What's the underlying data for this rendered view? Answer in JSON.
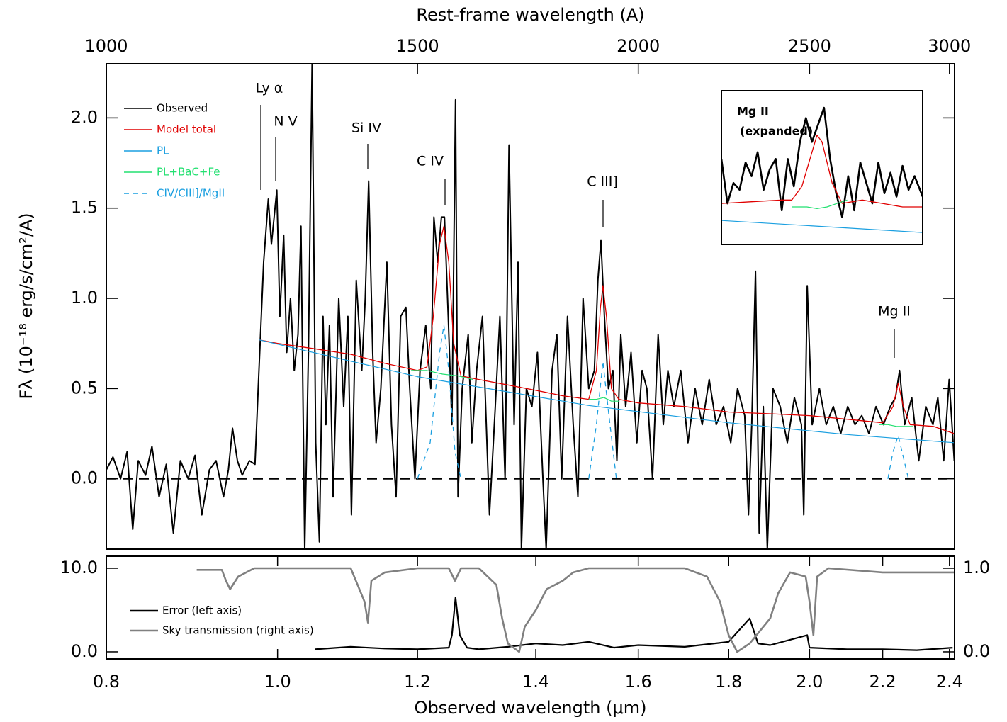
{
  "chart_data": [
    {
      "type": "line",
      "xscale": "log",
      "x2label": "Rest-frame wavelength (A)",
      "ylabel": "Fλ (10⁻¹⁸ erg/s/cm²/A)",
      "xlim": [
        0.8,
        2.416
      ],
      "x2lim": [
        1000,
        3020
      ],
      "x2ticks": [
        1000,
        1500,
        2000,
        2500,
        3000
      ],
      "ylim": [
        -0.39,
        2.3
      ],
      "yticks": [
        {
          "value": 0,
          "label": "0.0"
        },
        0.5,
        {
          "value": 1,
          "label": "1.0"
        },
        1.5,
        {
          "value": 2,
          "label": "2.0"
        }
      ],
      "hline": 0,
      "legend": "top-left",
      "annotations": [
        "Ly α",
        "N V",
        "Si IV",
        "C IV",
        "C III]",
        "Mg II"
      ],
      "series": [
        {
          "name": "Observed",
          "color": "#000000",
          "x": [
            0.8,
            0.807,
            0.815,
            0.822,
            0.828,
            0.834,
            0.842,
            0.849,
            0.857,
            0.865,
            0.873,
            0.881,
            0.89,
            0.898,
            0.906,
            0.915,
            0.923,
            0.932,
            0.938,
            0.943,
            0.949,
            0.955,
            0.964,
            0.971,
            0.976,
            0.982,
            0.988,
            0.992,
            0.999,
            1.003,
            1.008,
            1.012,
            1.017,
            1.022,
            1.027,
            1.031,
            1.036,
            1.041,
            1.046,
            1.051,
            1.056,
            1.061,
            1.065,
            1.07,
            1.075,
            1.083,
            1.09,
            1.096,
            1.101,
            1.108,
            1.116,
            1.121,
            1.126,
            1.132,
            1.137,
            1.144,
            1.153,
            1.16,
            1.167,
            1.174,
            1.182,
            1.188,
            1.196,
            1.204,
            1.213,
            1.221,
            1.226,
            1.232,
            1.238,
            1.243,
            1.249,
            1.255,
            1.261,
            1.265,
            1.272,
            1.282,
            1.288,
            1.296,
            1.306,
            1.318,
            1.328,
            1.336,
            1.345,
            1.352,
            1.361,
            1.368,
            1.374,
            1.383,
            1.393,
            1.403,
            1.413,
            1.419,
            1.43,
            1.439,
            1.448,
            1.459,
            1.47,
            1.479,
            1.489,
            1.5,
            1.511,
            1.518,
            1.524,
            1.531,
            1.539,
            1.548,
            1.556,
            1.564,
            1.574,
            1.585,
            1.597,
            1.608,
            1.618,
            1.63,
            1.642,
            1.653,
            1.663,
            1.676,
            1.691,
            1.707,
            1.723,
            1.739,
            1.755,
            1.771,
            1.788,
            1.805,
            1.821,
            1.838,
            1.847,
            1.855,
            1.864,
            1.873,
            1.883,
            1.893,
            1.907,
            1.925,
            1.943,
            1.961,
            1.979,
            1.985,
            1.994,
            2.007,
            2.026,
            2.044,
            2.063,
            2.083,
            2.102,
            2.122,
            2.141,
            2.161,
            2.181,
            2.202,
            2.222,
            2.237,
            2.249,
            2.264,
            2.285,
            2.306,
            2.327,
            2.349,
            2.364,
            2.382,
            2.399,
            2.415
          ],
          "values": [
            0.05,
            0.12,
            0.0,
            0.15,
            -0.28,
            0.1,
            0.02,
            0.18,
            -0.1,
            0.08,
            -0.3,
            0.1,
            0.0,
            0.13,
            -0.2,
            0.05,
            0.1,
            -0.1,
            0.05,
            0.28,
            0.1,
            0.02,
            0.1,
            0.08,
            0.6,
            1.2,
            1.55,
            1.3,
            1.6,
            0.9,
            1.35,
            0.7,
            1.0,
            0.6,
            0.8,
            1.4,
            -0.39,
            0.7,
            2.3,
            0.2,
            -0.35,
            0.9,
            0.3,
            0.85,
            -0.1,
            1.0,
            0.4,
            0.9,
            -0.2,
            1.1,
            0.6,
            1.0,
            1.65,
            0.7,
            0.2,
            0.5,
            1.2,
            0.3,
            -0.1,
            0.9,
            0.95,
            0.5,
            0.0,
            0.6,
            0.85,
            0.5,
            1.45,
            1.2,
            1.45,
            1.45,
            0.9,
            0.3,
            2.1,
            -0.1,
            0.5,
            0.8,
            0.2,
            0.6,
            0.9,
            -0.2,
            0.4,
            0.9,
            0.0,
            1.85,
            0.3,
            1.2,
            -0.39,
            0.5,
            0.4,
            0.7,
            0.0,
            -0.39,
            0.6,
            0.8,
            0.0,
            0.9,
            0.3,
            -0.1,
            1.0,
            0.5,
            0.6,
            1.1,
            1.32,
            0.9,
            0.5,
            0.6,
            0.1,
            0.8,
            0.4,
            0.7,
            0.2,
            0.6,
            0.5,
            0.0,
            0.8,
            0.3,
            0.6,
            0.4,
            0.6,
            0.2,
            0.5,
            0.3,
            0.55,
            0.3,
            0.4,
            0.2,
            0.5,
            0.35,
            -0.2,
            0.3,
            1.15,
            -0.3,
            0.4,
            -0.39,
            0.5,
            0.4,
            0.2,
            0.45,
            0.3,
            -0.2,
            1.07,
            0.3,
            0.5,
            0.3,
            0.4,
            0.25,
            0.4,
            0.3,
            0.35,
            0.25,
            0.4,
            0.3,
            0.4,
            0.45,
            0.6,
            0.3,
            0.45,
            0.1,
            0.4,
            0.3,
            0.45,
            0.1,
            0.55,
            0.1
          ]
        },
        {
          "name": "Model total",
          "color": "#e00000",
          "x": [
            0.976,
            1.0,
            1.05,
            1.1,
            1.15,
            1.2,
            1.215,
            1.225,
            1.235,
            1.242,
            1.25,
            1.258,
            1.27,
            1.3,
            1.35,
            1.4,
            1.45,
            1.5,
            1.515,
            1.523,
            1.528,
            1.535,
            1.545,
            1.56,
            1.6,
            1.7,
            1.8,
            1.9,
            2.0,
            2.1,
            2.2,
            2.23,
            2.245,
            2.26,
            2.28,
            2.35,
            2.415
          ],
          "values": [
            0.77,
            0.75,
            0.72,
            0.69,
            0.64,
            0.6,
            0.62,
            0.9,
            1.3,
            1.4,
            1.2,
            0.75,
            0.57,
            0.55,
            0.52,
            0.49,
            0.46,
            0.44,
            0.6,
            0.95,
            1.07,
            0.9,
            0.5,
            0.44,
            0.42,
            0.4,
            0.37,
            0.36,
            0.35,
            0.33,
            0.31,
            0.4,
            0.53,
            0.4,
            0.3,
            0.29,
            0.25
          ]
        },
        {
          "name": "PL",
          "color": "#1a9fe0",
          "x": [
            0.976,
            1.2,
            1.5,
            1.8,
            2.1,
            2.415
          ],
          "values": [
            0.77,
            0.566,
            0.406,
            0.31,
            0.245,
            0.2
          ]
        },
        {
          "name": "PL+BaC+Fe",
          "color": "#22e070",
          "x": [
            1.19,
            1.215,
            1.24,
            1.265,
            1.29,
            1.4,
            1.5,
            1.515,
            1.53,
            1.545,
            1.56,
            1.9,
            2.19,
            2.215,
            2.24,
            2.265,
            2.29
          ],
          "values": [
            0.6,
            0.6,
            0.58,
            0.57,
            0.55,
            null,
            0.44,
            0.44,
            0.45,
            0.43,
            0.43,
            null,
            0.3,
            0.3,
            0.29,
            0.29,
            0.29
          ]
        },
        {
          "name": "CIV/CIII]/MgII",
          "color": "#1a9fe0",
          "dash": true,
          "x": [
            1.2,
            1.22,
            1.235,
            1.242,
            1.25,
            1.26,
            1.27,
            1.4,
            1.5,
            1.515,
            1.528,
            1.54,
            1.555,
            1.9,
            2.215,
            2.23,
            2.245,
            2.26,
            2.275
          ],
          "values": [
            0,
            0.2,
            0.7,
            0.85,
            0.6,
            0.15,
            0,
            null,
            0,
            0.3,
            0.65,
            0.35,
            0,
            null,
            0,
            0.15,
            0.24,
            0.12,
            0
          ]
        }
      ]
    },
    {
      "type": "line",
      "xscale": "log",
      "xlabel": "Observed wavelength (μm)",
      "xlim": [
        0.8,
        2.416
      ],
      "xticks": [
        0.8,
        {
          "value": 1,
          "label": "1.0"
        },
        1.2,
        1.4,
        1.6,
        1.8,
        {
          "value": 2,
          "label": "2.0"
        },
        2.2,
        2.4
      ],
      "ylim": [
        -0.85,
        11.44
      ],
      "yticks": [
        {
          "value": 0,
          "label": "0.0"
        },
        {
          "value": 10,
          "label": "10.0"
        }
      ],
      "y2lim": [
        -0.085,
        1.144
      ],
      "y2ticks": [
        {
          "value": 0,
          "label": "0.0"
        },
        {
          "value": 1,
          "label": "1.0"
        }
      ],
      "legend": "center-left",
      "series": [
        {
          "name": "Error (left axis)",
          "color": "#000000",
          "x": [
            1.05,
            1.1,
            1.15,
            1.2,
            1.25,
            1.255,
            1.261,
            1.268,
            1.28,
            1.3,
            1.35,
            1.4,
            1.45,
            1.5,
            1.55,
            1.6,
            1.7,
            1.8,
            1.85,
            1.87,
            1.9,
            1.994,
            2.0,
            2.1,
            2.2,
            2.3,
            2.41
          ],
          "values": [
            0.3,
            0.6,
            0.4,
            0.3,
            0.5,
            2.0,
            6.5,
            2.0,
            0.5,
            0.3,
            0.6,
            1.0,
            0.8,
            1.2,
            0.5,
            0.8,
            0.6,
            1.2,
            4.0,
            1.0,
            0.8,
            2.0,
            0.5,
            0.3,
            0.3,
            0.2,
            0.5
          ]
        },
        {
          "name": "Sky transmission (right axis)",
          "color": "#808080",
          "axis": "y2",
          "x": [
            0.9,
            0.93,
            0.935,
            0.94,
            0.95,
            0.97,
            1.1,
            1.11,
            1.12,
            1.125,
            1.13,
            1.15,
            1.2,
            1.25,
            1.26,
            1.27,
            1.3,
            1.33,
            1.34,
            1.35,
            1.37,
            1.38,
            1.4,
            1.42,
            1.45,
            1.47,
            1.5,
            1.7,
            1.75,
            1.78,
            1.8,
            1.82,
            1.85,
            1.9,
            1.92,
            1.95,
            1.99,
            2.0,
            2.01,
            2.02,
            2.05,
            2.2,
            2.3,
            2.415
          ],
          "values": [
            0.98,
            0.98,
            0.85,
            0.75,
            0.9,
            1.0,
            1.0,
            0.8,
            0.6,
            0.35,
            0.85,
            0.95,
            1.0,
            1.0,
            0.85,
            1.0,
            1.0,
            0.8,
            0.4,
            0.1,
            0.0,
            0.3,
            0.5,
            0.75,
            0.85,
            0.95,
            1.0,
            1.0,
            0.9,
            0.6,
            0.2,
            0.0,
            0.1,
            0.4,
            0.7,
            0.95,
            0.9,
            0.6,
            0.2,
            0.9,
            1.0,
            0.95,
            0.95,
            0.95
          ]
        }
      ]
    },
    {
      "type": "line",
      "title": "Mg II",
      "subtitle": "(expanded)",
      "xlim": [
        2.15,
        2.35
      ],
      "ylim": [
        0.2,
        0.65
      ],
      "series": [
        {
          "color": "#000000",
          "x": [
            2.15,
            2.156,
            2.162,
            2.168,
            2.174,
            2.18,
            2.186,
            2.192,
            2.198,
            2.204,
            2.21,
            2.216,
            2.222,
            2.228,
            2.234,
            2.24,
            2.246,
            2.252,
            2.258,
            2.264,
            2.27,
            2.276,
            2.282,
            2.288,
            2.294,
            2.3,
            2.306,
            2.312,
            2.318,
            2.324,
            2.33,
            2.336,
            2.342,
            2.35
          ],
          "values": [
            0.45,
            0.32,
            0.38,
            0.36,
            0.44,
            0.4,
            0.47,
            0.36,
            0.42,
            0.45,
            0.3,
            0.45,
            0.37,
            0.5,
            0.57,
            0.5,
            0.55,
            0.6,
            0.45,
            0.35,
            0.28,
            0.4,
            0.3,
            0.44,
            0.38,
            0.32,
            0.44,
            0.35,
            0.41,
            0.34,
            0.43,
            0.36,
            0.4,
            0.34
          ]
        },
        {
          "color": "#e00000",
          "x": [
            2.15,
            2.18,
            2.21,
            2.22,
            2.23,
            2.24,
            2.245,
            2.25,
            2.26,
            2.27,
            2.29,
            2.31,
            2.33,
            2.35
          ],
          "values": [
            0.32,
            0.325,
            0.33,
            0.33,
            0.37,
            0.47,
            0.52,
            0.5,
            0.38,
            0.32,
            0.33,
            0.32,
            0.31,
            0.31
          ]
        },
        {
          "color": "#22e070",
          "x": [
            2.22,
            2.235,
            2.245,
            2.255,
            2.265,
            2.275
          ],
          "values": [
            0.31,
            0.31,
            0.305,
            0.31,
            0.32,
            0.33
          ]
        },
        {
          "color": "#1a9fe0",
          "x": [
            2.15,
            2.35
          ],
          "values": [
            0.27,
            0.235
          ]
        }
      ]
    }
  ]
}
